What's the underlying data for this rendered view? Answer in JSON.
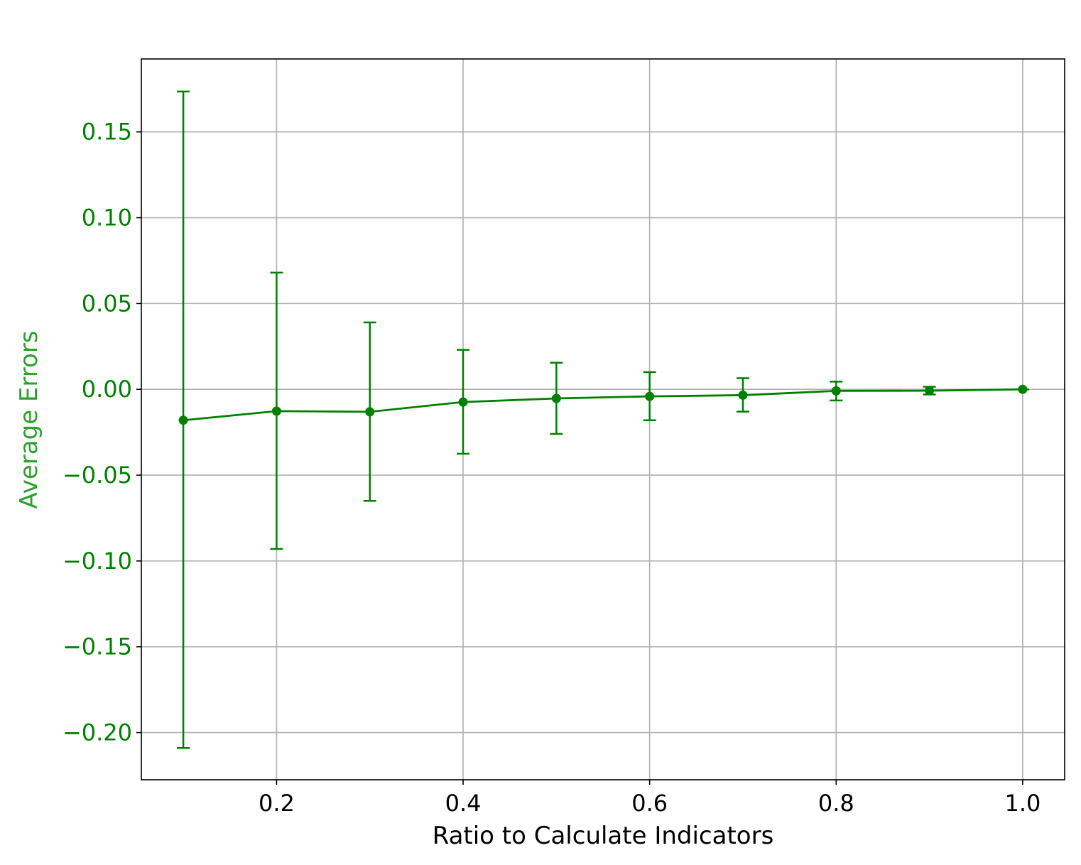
{
  "chart_data": {
    "type": "line",
    "title": "",
    "xlabel": "Ratio to Calculate Indicators",
    "ylabel": "Average Errors",
    "xlim": [
      0.055,
      1.045
    ],
    "ylim": [
      -0.2275,
      0.1925
    ],
    "x_ticks": [
      0.2,
      0.4,
      0.6,
      0.8,
      1.0
    ],
    "x_tick_labels": [
      "0.2",
      "0.4",
      "0.6",
      "0.8",
      "1.0"
    ],
    "y_ticks": [
      0.15,
      0.1,
      0.05,
      0.0,
      -0.05,
      -0.1,
      -0.15,
      -0.2
    ],
    "y_tick_labels": [
      "0.15",
      "0.10",
      "0.05",
      "0.00",
      "−0.05",
      "−0.10",
      "−0.15",
      "−0.20"
    ],
    "grid": true,
    "legend": "none",
    "series": [
      {
        "x": [
          0.1,
          0.2,
          0.3,
          0.4,
          0.5,
          0.6,
          0.7,
          0.8,
          0.9,
          1.0
        ],
        "y": [
          -0.018,
          -0.0127,
          -0.0131,
          -0.0074,
          -0.0053,
          -0.0041,
          -0.0034,
          -0.0009,
          -0.0008,
          0.0
        ],
        "error_lower": [
          -0.209,
          -0.093,
          -0.065,
          -0.0375,
          -0.026,
          -0.018,
          -0.013,
          -0.0065,
          -0.003,
          0.0
        ],
        "error_upper": [
          0.1735,
          0.068,
          0.039,
          0.023,
          0.0155,
          0.01,
          0.0065,
          0.0045,
          0.0015,
          0.0
        ],
        "color": "#008000"
      }
    ],
    "colors": {
      "series": "#008000",
      "y_tick_labels": "#008000",
      "ylabel": "#2ca02c",
      "x_tick_labels": "#000000",
      "xlabel": "#000000",
      "grid": "#b0b0b0",
      "frame": "#000000"
    }
  }
}
